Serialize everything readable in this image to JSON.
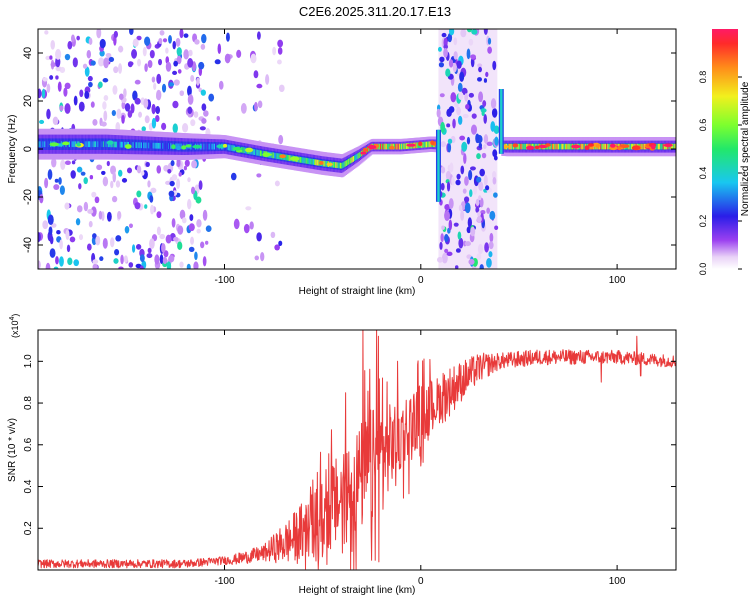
{
  "title": "C2E6.2025.311.20.17.E13",
  "chart_data": [
    {
      "type": "heatmap",
      "name": "spectrogram",
      "xlabel": "Height of straight line (km)",
      "ylabel": "Frequency (Hz)",
      "xlim": [
        -195,
        130
      ],
      "ylim": [
        -50,
        50
      ],
      "xticks": [
        -100,
        0,
        100
      ],
      "yticks": [
        -40,
        -20,
        0,
        20,
        40
      ],
      "colorbar": {
        "label": "Normalized spectral amplitude",
        "range": [
          0,
          1
        ],
        "ticks": [
          "0.0",
          "0.2",
          "0.4",
          "0.6",
          "0.8"
        ]
      },
      "noise_bands": [
        {
          "x0": -195,
          "x1": -108,
          "level": 0.35
        },
        {
          "x0": -108,
          "x1": -70,
          "level": 0.08
        },
        {
          "x0": 9,
          "x1": 39,
          "level": 0.5
        }
      ],
      "ridge": [
        {
          "x": -195,
          "f": 2,
          "width": 8,
          "amp": 0.35
        },
        {
          "x": -160,
          "f": 2,
          "width": 8,
          "amp": 0.4
        },
        {
          "x": -120,
          "f": 1,
          "width": 7,
          "amp": 0.3
        },
        {
          "x": -100,
          "f": 1,
          "width": 6,
          "amp": 0.35
        },
        {
          "x": -80,
          "f": -2,
          "width": 6,
          "amp": 0.55
        },
        {
          "x": -65,
          "f": -4,
          "width": 6,
          "amp": 0.6
        },
        {
          "x": -50,
          "f": -6,
          "width": 6,
          "amp": 0.7
        },
        {
          "x": -40,
          "f": -7,
          "width": 6,
          "amp": 0.6
        },
        {
          "x": -32,
          "f": -3,
          "width": 5,
          "amp": 0.7
        },
        {
          "x": -25,
          "f": 1,
          "width": 4,
          "amp": 0.85
        },
        {
          "x": -10,
          "f": 1,
          "width": 4,
          "amp": 0.85
        },
        {
          "x": 5,
          "f": 2,
          "width": 4,
          "amp": 0.7
        },
        {
          "x": 44,
          "f": 1,
          "width": 5,
          "amp": 0.75
        },
        {
          "x": 80,
          "f": 1,
          "width": 5,
          "amp": 0.8
        },
        {
          "x": 130,
          "f": 1,
          "width": 5,
          "amp": 0.8
        }
      ],
      "transients": [
        {
          "x": 9,
          "f0": -22,
          "f1": 8
        },
        {
          "x": 41,
          "f0": -2,
          "f1": 25
        }
      ]
    },
    {
      "type": "line",
      "name": "snr",
      "xlabel": "Height of straight line (km)",
      "ylabel": "SNR (10 * v/v)",
      "multiplier": "(x10",
      "multiplier_exp": "4",
      "xlim": [
        -195,
        130
      ],
      "ylim": [
        0,
        1.15
      ],
      "xticks": [
        -100,
        0,
        100
      ],
      "yticks": [
        0.2,
        0.4,
        0.6,
        0.8,
        1.0
      ],
      "ytick_labels": [
        "0.2",
        "0.4",
        "0.6",
        "0.8",
        "1.0"
      ],
      "series": [
        {
          "name": "SNR",
          "color": "#e83a3a",
          "trend": [
            [
              -195,
              0.03
            ],
            [
              -120,
              0.03
            ],
            [
              -95,
              0.05
            ],
            [
              -80,
              0.08
            ],
            [
              -65,
              0.15
            ],
            [
              -50,
              0.25
            ],
            [
              -40,
              0.35
            ],
            [
              -30,
              0.45
            ],
            [
              -20,
              0.55
            ],
            [
              -10,
              0.65
            ],
            [
              0,
              0.75
            ],
            [
              10,
              0.82
            ],
            [
              20,
              0.9
            ],
            [
              30,
              0.97
            ],
            [
              40,
              1.0
            ],
            [
              60,
              1.02
            ],
            [
              100,
              1.02
            ],
            [
              130,
              1.0
            ]
          ],
          "noise": [
            [
              -195,
              0.02
            ],
            [
              -100,
              0.02
            ],
            [
              -80,
              0.04
            ],
            [
              -60,
              0.15
            ],
            [
              -40,
              0.3
            ],
            [
              -25,
              0.35
            ],
            [
              -15,
              0.25
            ],
            [
              0,
              0.18
            ],
            [
              20,
              0.1
            ],
            [
              40,
              0.04
            ],
            [
              130,
              0.03
            ]
          ],
          "spikes": [
            {
              "x": -29.5,
              "y": 1.15
            },
            {
              "x": -22.5,
              "y": 1.15
            },
            {
              "x": -21.5,
              "y": 1.12
            },
            {
              "x": -19.5,
              "y": 0.92
            },
            {
              "x": 92,
              "y": 0.9
            },
            {
              "x": 110,
              "y": 1.12
            },
            {
              "x": 112,
              "y": 0.93
            }
          ]
        }
      ]
    }
  ]
}
